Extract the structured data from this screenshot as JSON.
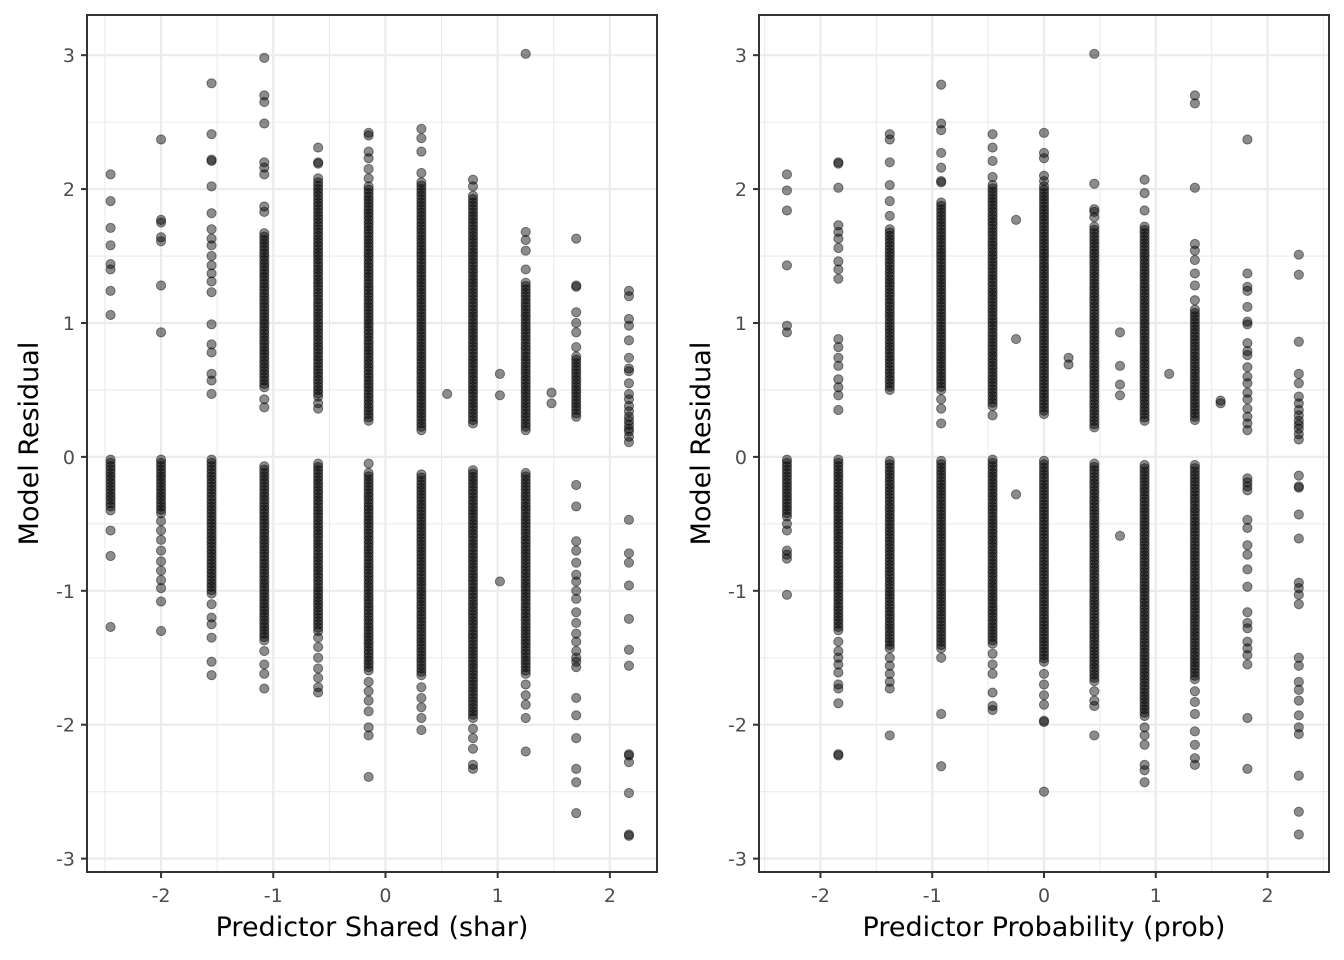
{
  "chart_data": [
    {
      "type": "scatter",
      "xlabel": "Predictor Shared (shar)",
      "ylabel": "Model Residual",
      "xlim": [
        -2.66,
        2.42
      ],
      "ylim": [
        -3.1,
        3.3
      ],
      "xticks": [
        -2,
        -1,
        0,
        1,
        2
      ],
      "yticks": [
        -3,
        -2,
        -1,
        0,
        1,
        2,
        3
      ],
      "grid": true,
      "point_color": "#000000",
      "point_opacity": 0.45,
      "columns": [
        {
          "x": -2.45,
          "pos": [
            2.11,
            1.91,
            1.71,
            1.58,
            1.44,
            1.4,
            1.24,
            1.06
          ],
          "neg_range": [
            -0.02,
            -0.37
          ],
          "neg": [
            -0.4,
            -0.55,
            -0.74,
            -1.27
          ]
        },
        {
          "x": -2.0,
          "pos": [
            2.37,
            1.77,
            1.75,
            1.64,
            1.61,
            1.28,
            0.93
          ],
          "neg_range": [
            -0.02,
            -0.42
          ],
          "neg": [
            -0.48,
            -0.55,
            -0.62,
            -0.7,
            -0.78,
            -0.85,
            -0.92,
            -0.98,
            -1.08,
            -1.3
          ]
        },
        {
          "x": -1.55,
          "pos": [
            2.79,
            2.41,
            2.22,
            2.21,
            2.02,
            1.82,
            1.7,
            1.63,
            1.58,
            1.5,
            1.43,
            1.37,
            1.31,
            1.23,
            0.99,
            0.84,
            0.78,
            0.62,
            0.57,
            0.47
          ],
          "neg_range": [
            -0.02,
            -1.03
          ],
          "neg": [
            -1.1,
            -1.2,
            -1.25,
            -1.35,
            -1.53,
            -1.63
          ]
        },
        {
          "x": -1.08,
          "pos": [
            2.98,
            2.7,
            2.65,
            2.49,
            2.2,
            2.16,
            2.11,
            1.87,
            1.83
          ],
          "pos_range": [
            0.5,
            1.67
          ],
          "pos2": [
            0.43,
            0.37
          ],
          "neg_range": [
            -0.07,
            -1.38
          ],
          "neg": [
            -1.45,
            -1.55,
            -1.62,
            -1.73
          ]
        },
        {
          "x": -0.6,
          "pos": [
            2.31,
            2.2,
            2.19,
            2.08
          ],
          "pos_range": [
            0.45,
            2.05
          ],
          "pos2": [
            0.4,
            0.36
          ],
          "neg_range": [
            -0.05,
            -1.3
          ],
          "neg": [
            -1.35,
            -1.42,
            -1.5,
            -1.58,
            -1.65,
            -1.72,
            -1.76
          ]
        },
        {
          "x": -0.15,
          "pos": [
            2.42,
            2.4,
            2.28,
            2.23,
            2.15,
            2.08
          ],
          "pos_range": [
            0.26,
            2.02
          ],
          "pos2": [],
          "neg": [
            -0.05
          ],
          "neg_range": [
            -0.12,
            -1.6
          ],
          "neg_extra": [
            -1.68,
            -1.75,
            -1.82,
            -1.9,
            -2.02,
            -2.08,
            -2.39
          ]
        },
        {
          "x": 0.32,
          "pos": [
            2.45,
            2.38,
            2.28,
            2.12
          ],
          "pos_range": [
            0.18,
            2.05
          ],
          "pos2": [],
          "neg_range": [
            -0.13,
            -1.65
          ],
          "neg": [
            -1.72,
            -1.8,
            -1.87,
            -1.95,
            -2.04
          ]
        },
        {
          "x": 0.55,
          "pos": [
            0.47
          ],
          "neg": []
        },
        {
          "x": 0.78,
          "pos": [
            2.07,
            2.02
          ],
          "pos_range": [
            0.23,
            1.95
          ],
          "pos2": [],
          "neg_range": [
            -0.1,
            -1.95
          ],
          "neg": [
            -2.03,
            -2.1,
            -2.18,
            -2.3,
            -2.33
          ]
        },
        {
          "x": 1.02,
          "pos": [
            0.62,
            0.46
          ],
          "neg": [
            -0.93
          ]
        },
        {
          "x": 1.25,
          "pos": [
            3.01,
            1.68,
            1.62,
            1.54,
            1.4
          ],
          "pos_range": [
            0.2,
            1.3
          ],
          "pos2": [],
          "neg_range": [
            -0.12,
            -1.62
          ],
          "neg": [
            -1.7,
            -1.78,
            -1.85,
            -1.95,
            -2.2
          ]
        },
        {
          "x": 1.48,
          "pos": [
            0.48,
            0.4
          ],
          "neg": []
        },
        {
          "x": 1.7,
          "pos": [
            1.63,
            1.28,
            1.27,
            1.08,
            1.0,
            0.93,
            0.82
          ],
          "pos_range": [
            0.28,
            0.75
          ],
          "pos2": [],
          "neg": [
            -0.21,
            -0.37,
            -0.63,
            -0.7,
            -0.79,
            -0.88,
            -0.93,
            -1.0,
            -1.06,
            -1.16,
            -1.24,
            -1.32,
            -1.38,
            -1.45,
            -1.5,
            -1.53,
            -1.57,
            -1.8,
            -1.93,
            -2.1,
            -2.33,
            -2.43,
            -2.66
          ]
        },
        {
          "x": 2.17,
          "pos": [
            1.24,
            1.2,
            1.03,
            0.98,
            0.87,
            0.74,
            0.66,
            0.64,
            0.55,
            0.47,
            0.43,
            0.38,
            0.34,
            0.3,
            0.27,
            0.24,
            0.21,
            0.19,
            0.15,
            0.11
          ],
          "neg": [
            -0.47,
            -0.72,
            -0.79,
            -0.96,
            -1.21,
            -1.44,
            -1.56,
            -2.22,
            -2.23,
            -2.28,
            -2.51,
            -2.82,
            -2.83
          ]
        }
      ]
    },
    {
      "type": "scatter",
      "xlabel": "Predictor Probability (prob)",
      "ylabel": "Model Residual",
      "xlim": [
        -2.55,
        2.55
      ],
      "ylim": [
        -3.1,
        3.3
      ],
      "xticks": [
        -2,
        -1,
        0,
        1,
        2
      ],
      "yticks": [
        -3,
        -2,
        -1,
        0,
        1,
        2,
        3
      ],
      "grid": true,
      "point_color": "#000000",
      "point_opacity": 0.45,
      "columns": [
        {
          "x": -2.3,
          "pos": [
            2.11,
            1.99,
            1.84,
            1.43,
            0.98,
            0.93
          ],
          "neg_range": [
            -0.02,
            -0.45
          ],
          "neg": [
            -0.5,
            -0.55,
            -0.7,
            -0.73,
            -0.76,
            -1.03
          ]
        },
        {
          "x": -1.84,
          "pos": [
            2.2,
            2.19,
            2.01,
            1.73,
            1.68,
            1.63,
            1.56,
            1.46,
            1.4,
            1.33,
            0.88,
            0.82,
            0.74,
            0.68,
            0.58,
            0.52,
            0.46,
            0.35
          ],
          "neg_range": [
            -0.02,
            -1.3
          ],
          "neg": [
            -1.38,
            -1.45,
            -1.5,
            -1.55,
            -1.61,
            -1.7,
            -1.73,
            -1.84,
            -2.22,
            -2.23
          ]
        },
        {
          "x": -1.38,
          "pos": [
            2.41,
            2.37,
            2.2,
            2.03,
            1.91,
            1.8
          ],
          "pos_range": [
            0.48,
            1.7
          ],
          "pos2": [],
          "neg_range": [
            -0.03,
            -1.43
          ],
          "neg": [
            -1.5,
            -1.56,
            -1.62,
            -1.68,
            -1.73,
            -2.08
          ]
        },
        {
          "x": -0.92,
          "pos": [
            2.78,
            2.49,
            2.44,
            2.27,
            2.16,
            2.06,
            2.05
          ],
          "pos_range": [
            0.5,
            1.9
          ],
          "pos2": [
            0.43,
            0.36,
            0.25
          ],
          "neg_range": [
            -0.03,
            -1.45
          ],
          "neg": [
            -1.5,
            -1.92,
            -2.31
          ]
        },
        {
          "x": -0.46,
          "pos": [
            2.41,
            2.31,
            2.21,
            2.09
          ],
          "pos_range": [
            0.36,
            2.03
          ],
          "pos2": [
            0.31
          ],
          "neg_range": [
            -0.02,
            -1.4
          ],
          "neg": [
            -1.47,
            -1.55,
            -1.62,
            -1.76,
            -1.86,
            -1.89
          ]
        },
        {
          "x": -0.25,
          "pos": [
            1.77,
            0.88
          ],
          "neg": [
            -0.28
          ]
        },
        {
          "x": 0.0,
          "pos": [
            2.42,
            2.27,
            2.23,
            2.1,
            2.06
          ],
          "pos_range": [
            0.3,
            2.02
          ],
          "pos2": [],
          "neg_range": [
            -0.03,
            -1.55
          ],
          "neg": [
            -1.62,
            -1.7,
            -1.78,
            -1.85,
            -1.97,
            -1.98,
            -2.5
          ]
        },
        {
          "x": 0.22,
          "pos": [
            0.74,
            0.69
          ],
          "neg": []
        },
        {
          "x": 0.45,
          "pos": [
            3.01,
            2.04,
            1.85,
            1.83,
            1.79
          ],
          "pos_range": [
            0.22,
            1.72
          ],
          "pos2": [],
          "neg_range": [
            -0.05,
            -1.68
          ],
          "neg": [
            -1.75,
            -1.82,
            -1.86,
            -2.08
          ]
        },
        {
          "x": 0.68,
          "pos": [
            0.93,
            0.68,
            0.54,
            0.46
          ],
          "neg": [
            -0.59
          ]
        },
        {
          "x": 0.9,
          "pos": [
            2.07,
            1.97,
            1.84
          ],
          "pos_range": [
            0.26,
            1.72
          ],
          "pos2": [],
          "neg_range": [
            -0.06,
            -1.95
          ],
          "neg": [
            -2.02,
            -2.08,
            -2.15,
            -2.3,
            -2.34,
            -2.43
          ]
        },
        {
          "x": 1.12,
          "pos": [
            0.62
          ],
          "neg": []
        },
        {
          "x": 1.35,
          "pos": [
            2.7,
            2.64,
            2.01,
            1.59,
            1.54,
            1.47,
            1.37,
            1.28,
            1.17
          ],
          "pos_range": [
            0.26,
            1.1
          ],
          "pos2": [],
          "neg_range": [
            -0.06,
            -1.68
          ],
          "neg": [
            -1.75,
            -1.83,
            -1.92,
            -2.05,
            -2.15,
            -2.25,
            -2.3
          ]
        },
        {
          "x": 1.58,
          "pos": [
            0.42,
            0.4
          ],
          "neg": []
        },
        {
          "x": 1.82,
          "pos": [
            2.37,
            1.37,
            1.27,
            1.24,
            1.12,
            1.01,
            0.99,
            0.85,
            0.79,
            0.76,
            0.67,
            0.6,
            0.55,
            0.48,
            0.43,
            0.36,
            0.3,
            0.25,
            0.2
          ],
          "neg": [
            -0.16,
            -0.19,
            -0.22,
            -0.25,
            -0.47,
            -0.53,
            -0.66,
            -0.73,
            -0.84,
            -0.97,
            -1.16,
            -1.24,
            -1.28,
            -1.38,
            -1.43,
            -1.48,
            -1.55,
            -1.95,
            -2.33
          ]
        },
        {
          "x": 2.28,
          "pos": [
            1.51,
            1.36,
            0.86,
            0.62,
            0.55,
            0.45,
            0.4,
            0.35,
            0.31,
            0.27,
            0.24,
            0.21,
            0.17,
            0.13
          ],
          "neg": [
            -0.14,
            -0.22,
            -0.23,
            -0.43,
            -0.61,
            -0.94,
            -0.98,
            -1.03,
            -1.1,
            -1.5,
            -1.56,
            -1.68,
            -1.74,
            -1.82,
            -1.93,
            -2.02,
            -2.07,
            -2.38,
            -2.65,
            -2.82
          ]
        }
      ]
    }
  ]
}
